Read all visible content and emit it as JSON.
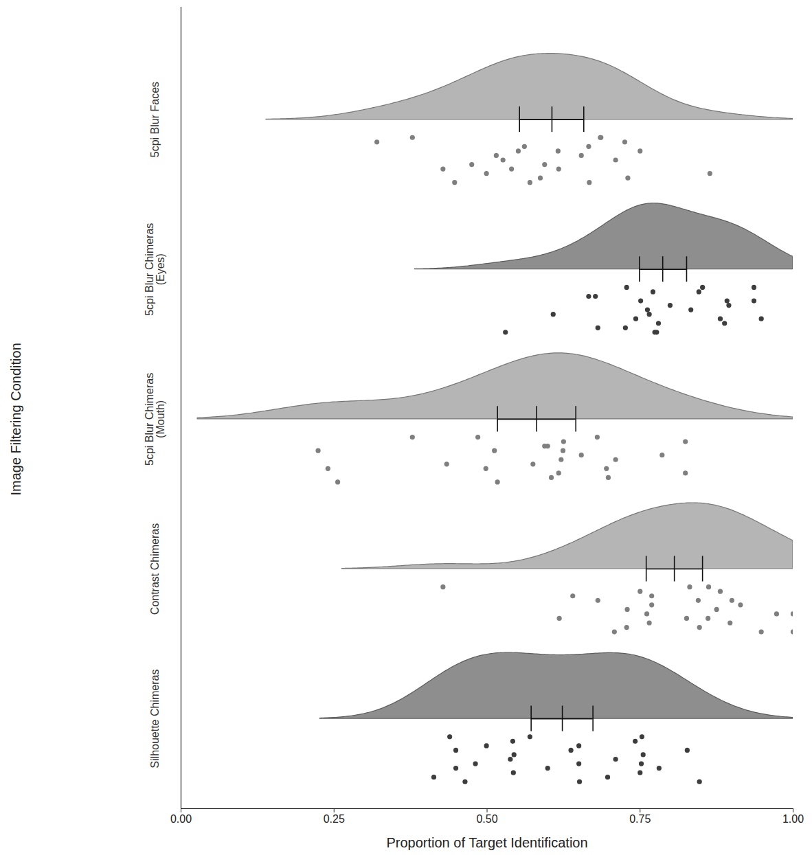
{
  "chart_data": {
    "type": "raincloud",
    "orientation": "horizontal",
    "x_label": "Proportion of Target Identification",
    "y_label": "Image Filtering Condition",
    "xlim": [
      0,
      1
    ],
    "xticks": [
      {
        "value": 0,
        "label": "0.00"
      },
      {
        "value": 0.25,
        "label": "0.25"
      },
      {
        "value": 0.5,
        "label": "0.50"
      },
      {
        "value": 0.75,
        "label": "0.75"
      },
      {
        "value": 1,
        "label": "1.00"
      }
    ],
    "groups": [
      {
        "label": "5cpi Blur Faces",
        "color": "#b5b5b5",
        "point_color": "#7f7f7f",
        "mean": 0.606,
        "ci": [
          0.553,
          0.658
        ],
        "density_range": [
          0.139,
          1.0
        ],
        "values": [
          0.378,
          0.428,
          0.551,
          0.57,
          0.594,
          0.666,
          0.73,
          0.71,
          0.725,
          0.864,
          0.654,
          0.685,
          0.617,
          0.75,
          0.447,
          0.475,
          0.561,
          0.587,
          0.526,
          0.32,
          0.499,
          0.515,
          0.686,
          0.54,
          0.616,
          0.667
        ]
      },
      {
        "label": "5cpi Blur Chimeras (Eyes)",
        "color": "#8e8e8e",
        "point_color": "#3d3d3d",
        "mean": 0.787,
        "ci": [
          0.749,
          0.826
        ],
        "density_range": [
          0.382,
          1.0
        ],
        "values": [
          0.728,
          0.743,
          0.751,
          0.777,
          0.765,
          0.677,
          0.681,
          0.833,
          0.846,
          0.888,
          0.895,
          0.936,
          0.948,
          0.936,
          0.53,
          0.608,
          0.666,
          0.726,
          0.762,
          0.771,
          0.78,
          0.799,
          0.852,
          0.881,
          0.892,
          0.774
        ]
      },
      {
        "label": "5cpi Blur Chimeras (Mouth)",
        "color": "#b5b5b5",
        "point_color": "#7f7f7f",
        "mean": 0.581,
        "ci": [
          0.517,
          0.645
        ],
        "density_range": [
          0.027,
          1.0
        ],
        "values": [
          0.378,
          0.24,
          0.224,
          0.256,
          0.434,
          0.599,
          0.698,
          0.71,
          0.824,
          0.824,
          0.786,
          0.485,
          0.498,
          0.512,
          0.517,
          0.575,
          0.594,
          0.605,
          0.621,
          0.625,
          0.617,
          0.654,
          0.68,
          0.695,
          0.624
        ]
      },
      {
        "label": "Contrast Chimeras",
        "color": "#b5b5b5",
        "point_color": "#7f7f7f",
        "mean": 0.806,
        "ci": [
          0.76,
          0.852
        ],
        "density_range": [
          0.263,
          1.0
        ],
        "values": [
          0.428,
          0.618,
          0.681,
          0.708,
          0.761,
          0.769,
          0.847,
          0.875,
          0.881,
          0.897,
          0.914,
          0.862,
          0.861,
          0.845,
          1.0,
          1.0,
          0.64,
          0.728,
          0.729,
          0.75,
          0.765,
          0.769,
          0.831,
          0.826,
          0.9,
          0.948,
          0.973
        ]
      },
      {
        "label": "Silhouette Chimeras",
        "color": "#8e8e8e",
        "point_color": "#3d3d3d",
        "mean": 0.623,
        "ci": [
          0.572,
          0.673
        ],
        "density_range": [
          0.227,
          1.0
        ],
        "values": [
          0.439,
          0.449,
          0.449,
          0.464,
          0.481,
          0.499,
          0.413,
          0.538,
          0.542,
          0.543,
          0.544,
          0.57,
          0.599,
          0.637,
          0.651,
          0.65,
          0.65,
          0.697,
          0.71,
          0.742,
          0.75,
          0.755,
          0.753,
          0.781,
          0.827,
          0.847,
          0.752
        ]
      }
    ]
  }
}
